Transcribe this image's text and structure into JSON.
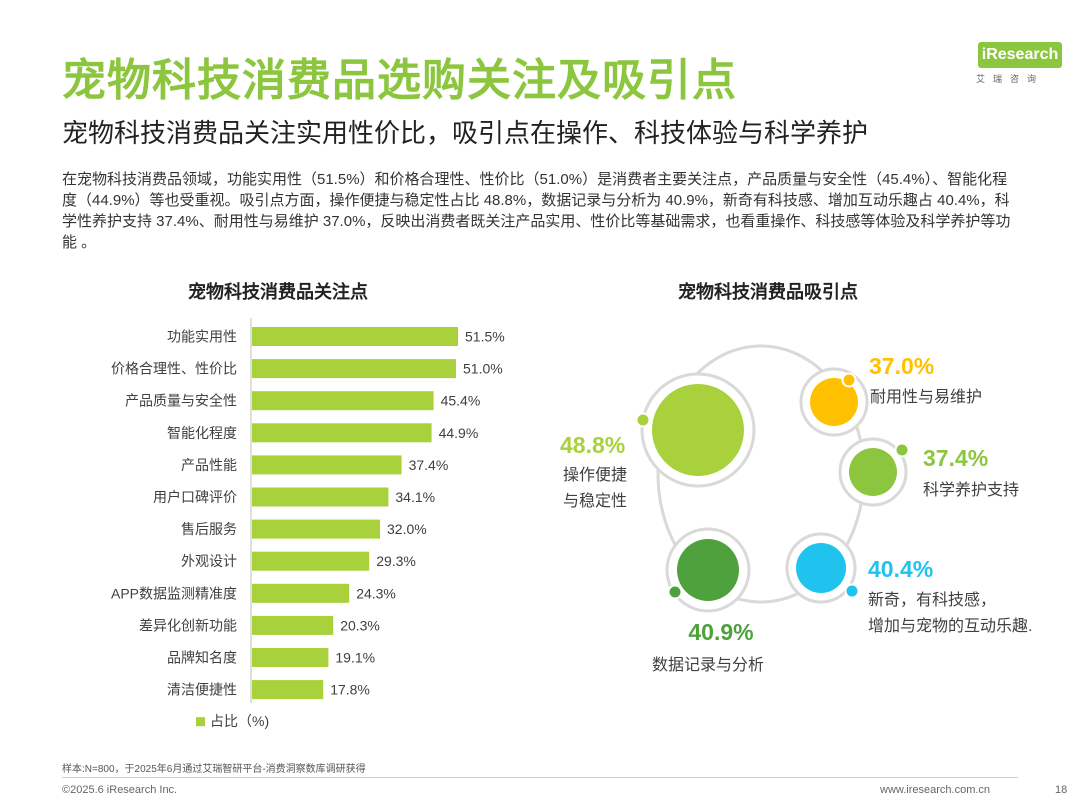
{
  "header": {
    "title": "宠物科技消费品选购关注及吸引点",
    "subtitle": "宠物科技消费品关注实用性价比，吸引点在操作、科技体验与科学养护",
    "description": "在宠物科技消费品领域，功能实用性（51.5%）和价格合理性、性价比（51.0%）是消费者主要关注点，产品质量与安全性（45.4%）、智能化程度（44.9%）等也受重视。吸引点方面，操作便捷与稳定性占比 48.8%，数据记录与分析为 40.9%，新奇有科技感、增加互动乐趣占 40.4%，科学性养护支持 37.4%、耐用性与易维护 37.0%，反映出消费者既关注产品实用、性价比等基础需求，也看重操作、科技感等体验及科学养护等功能 。"
  },
  "logo": {
    "mark": "iResearch",
    "sub": "艾瑞咨询"
  },
  "colors": {
    "accent": "#8cc63f",
    "bar": "#a8d13b",
    "bubble_light_green": "#a8d13b",
    "bubble_yellow": "#ffc000",
    "bubble_mid_green": "#8cc63f",
    "bubble_blue": "#1fc3ee",
    "bubble_dark_green": "#4ea13d"
  },
  "chart_data": [
    {
      "type": "bar",
      "orientation": "horizontal",
      "title": "宠物科技消费品关注点",
      "categories": [
        "功能实用性",
        "价格合理性、性价比",
        "产品质量与安全性",
        "智能化程度",
        "产品性能",
        "用户口碑评价",
        "售后服务",
        "外观设计",
        "APP数据监测精准度",
        "差异化创新功能",
        "品牌知名度",
        "清洁便捷性"
      ],
      "values": [
        51.5,
        51.0,
        45.4,
        44.9,
        37.4,
        34.1,
        32.0,
        29.3,
        24.3,
        20.3,
        19.1,
        17.8
      ],
      "labels": [
        "51.5%",
        "51.0%",
        "45.4%",
        "44.9%",
        "37.4%",
        "34.1%",
        "32.0%",
        "29.3%",
        "24.3%",
        "20.3%",
        "19.1%",
        "17.8%"
      ],
      "legend": "占比（%)",
      "xlim": [
        0,
        60
      ]
    },
    {
      "type": "bubble",
      "title": "宠物科技消费品吸引点",
      "items": [
        {
          "name": "操作便捷与稳定性",
          "lines": [
            "操作便捷",
            "与稳定性"
          ],
          "value": 48.8,
          "label": "48.8%",
          "color": "#a8d13b"
        },
        {
          "name": "耐用性与易维护",
          "lines": [
            "耐用性与易维护"
          ],
          "value": 37.0,
          "label": "37.0%",
          "color": "#ffc000"
        },
        {
          "name": "科学养护支持",
          "lines": [
            "科学养护支持"
          ],
          "value": 37.4,
          "label": "37.4%",
          "color": "#8cc63f"
        },
        {
          "name": "新奇，有科技感，增加与宠物的互动乐趣.",
          "lines": [
            "新奇，有科技感，",
            "增加与宠物的互动乐趣."
          ],
          "value": 40.4,
          "label": "40.4%",
          "color": "#1fc3ee"
        },
        {
          "name": "数据记录与分析",
          "lines": [
            "数据记录与分析"
          ],
          "value": 40.9,
          "label": "40.9%",
          "color": "#4ea13d"
        }
      ]
    }
  ],
  "footer": {
    "note": "样本:N=800，于2025年6月通过艾瑞智研平台-消费洞察数库调研获得",
    "copyright": "©2025.6 iResearch Inc.",
    "website": "www.iresearch.com.cn",
    "page": "18"
  }
}
